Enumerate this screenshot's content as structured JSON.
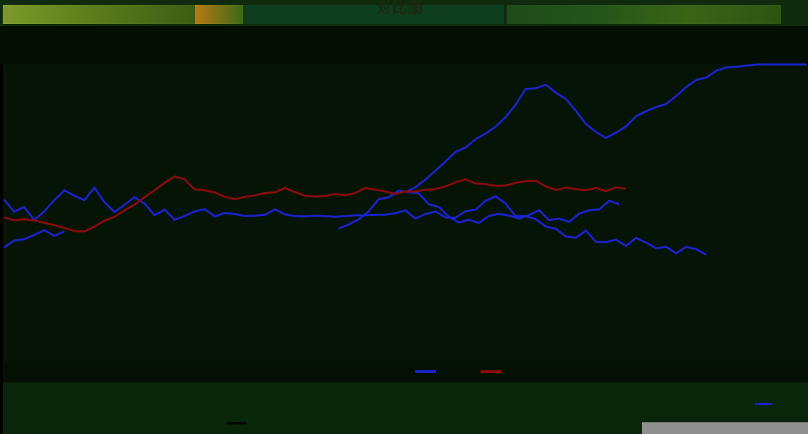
{
  "chart_data": {
    "type": "line",
    "title": "对比图",
    "xlabel": "",
    "ylabel": "",
    "grid": false,
    "legend": "bottom-center",
    "legend_text": "",
    "ylim": [
      0,
      100
    ],
    "xlim": [
      0,
      240
    ],
    "series": [
      {
        "color": "#1a22cc",
        "segments": [
          {
            "x": [
              0,
              3,
              6,
              9,
              12,
              15,
              18,
              21,
              24,
              27,
              30,
              33,
              36,
              39,
              42,
              45,
              48,
              51,
              54,
              57,
              60,
              63,
              66,
              69,
              72,
              75,
              78,
              81,
              84,
              87,
              90,
              93,
              96,
              99,
              102,
              105,
              108,
              111,
              114,
              117,
              120,
              123,
              126,
              129,
              132,
              135,
              138,
              141,
              144,
              147,
              150,
              153,
              156,
              159,
              162,
              165,
              168,
              171,
              174,
              177,
              180,
              183,
              186,
              189,
              192,
              195,
              198,
              201,
              204,
              207,
              210
            ],
            "y": [
              54.6,
              50.5,
              52.1,
              47.7,
              50.6,
              54.4,
              57.7,
              55.9,
              54.4,
              58.6,
              53.7,
              50.4,
              52.8,
              55.4,
              53.3,
              49.3,
              51.2,
              47.8,
              49.1,
              50.6,
              51.4,
              48.9,
              50.1,
              49.7,
              49.1,
              49.2,
              49.5,
              51.3,
              49.6,
              49.0,
              48.9,
              49.2,
              49.0,
              48.8,
              49.0,
              49.3,
              49.3,
              49.5,
              49.5,
              50.0,
              51.0,
              48.2,
              49.7,
              50.6,
              48.6,
              48.5,
              50.7,
              51.2,
              54.2,
              55.7,
              53.2,
              49.0,
              49.0,
              48.0,
              45.5,
              44.8,
              42.2,
              41.8,
              44.2,
              40.4,
              40.3,
              41.1,
              39.0,
              41.7,
              40.1,
              38.2,
              38.7,
              36.5,
              38.7,
              37.9,
              36.0
            ]
          },
          {
            "x": [
              100,
              103,
              106,
              109,
              112,
              115,
              118,
              121,
              124,
              127,
              130,
              133,
              136,
              139,
              142,
              145,
              148,
              151,
              154,
              157,
              160,
              163,
              166,
              169,
              172,
              175,
              178,
              181,
              184
            ],
            "y": [
              44.8,
              46.2,
              47.9,
              50.6,
              54.7,
              55.4,
              57.6,
              57.0,
              56.7,
              53.0,
              52.1,
              48.8,
              46.9,
              47.8,
              46.7,
              49.1,
              49.8,
              49.2,
              48.2,
              49.4,
              51.0,
              47.7,
              48.2,
              47.1,
              49.9,
              51.0,
              51.3,
              54.2,
              53.0
            ]
          },
          {
            "x": [
              120,
              123,
              126,
              129,
              132,
              135,
              138,
              141,
              144,
              147,
              150,
              153,
              156,
              159,
              162,
              165,
              168,
              171,
              174,
              177,
              180,
              183,
              186,
              189,
              192,
              195,
              198,
              201,
              204,
              207,
              210,
              213,
              216,
              219,
              222,
              225,
              228,
              231,
              234,
              237,
              240
            ],
            "y": [
              57.1,
              58.7,
              61.3,
              64.3,
              67.4,
              70.6,
              72.1,
              74.9,
              76.8,
              79.1,
              82.3,
              86.5,
              91.8,
              92.0,
              93.2,
              90.5,
              88.4,
              84.4,
              80.0,
              77.3,
              75.3,
              77.1,
              79.2,
              82.6,
              84.3,
              85.7,
              86.7,
              89.4,
              92.4,
              94.8,
              95.6,
              97.9,
              99.0,
              99.2,
              99.6,
              100.0,
              100.0,
              100.0,
              100.0,
              100.0,
              100.0
            ]
          },
          {
            "x": [
              0,
              3,
              6,
              9,
              12,
              15,
              18
            ],
            "y": [
              38.5,
              40.8,
              41.3,
              42.7,
              44.3,
              42.4,
              43.9
            ]
          }
        ]
      },
      {
        "color": "#8a0b0b",
        "segments": [
          {
            "x": [
              0,
              3,
              6,
              9,
              12,
              15,
              18,
              21,
              24,
              27,
              30,
              33,
              36,
              39,
              42,
              45,
              48,
              51,
              54,
              57,
              60,
              63,
              66,
              69,
              72,
              75,
              78,
              81,
              84,
              87,
              90,
              93,
              96,
              99,
              102,
              105,
              108,
              111,
              114,
              117,
              120,
              123,
              126,
              129,
              132,
              135,
              138,
              141,
              144,
              147,
              150,
              153,
              156,
              159,
              162,
              165,
              168,
              171,
              174,
              177,
              180,
              183,
              186
            ],
            "y": [
              48.6,
              47.6,
              48.0,
              47.6,
              46.8,
              46.0,
              45.1,
              44.0,
              43.9,
              45.5,
              47.5,
              48.8,
              51.0,
              52.9,
              55.4,
              57.7,
              60.2,
              62.3,
              61.4,
              58.0,
              57.7,
              57.0,
              55.5,
              54.7,
              55.5,
              56.0,
              56.8,
              57.0,
              58.5,
              57.1,
              55.9,
              55.6,
              55.8,
              56.5,
              56.0,
              56.8,
              58.5,
              57.9,
              57.3,
              56.5,
              57.3,
              57.3,
              57.9,
              58.1,
              59.0,
              60.4,
              61.4,
              60.0,
              59.8,
              59.2,
              59.3,
              60.2,
              60.8,
              60.9,
              59.0,
              57.8,
              58.6,
              58.1,
              57.7,
              58.5,
              57.4,
              58.7,
              58.2
            ]
          }
        ]
      }
    ]
  },
  "colors": {
    "background": "#000000",
    "plot_background": "#051405",
    "blue_line": "#1a22cc",
    "red_line": "#8a0b0b"
  }
}
